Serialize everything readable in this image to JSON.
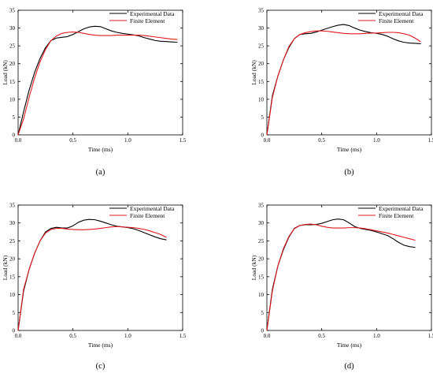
{
  "chart_data": [
    {
      "type": "line",
      "panel_label": "(a)",
      "xlabel": "Time (ms)",
      "ylabel": "Load (kN)",
      "xlim": [
        0,
        1.5
      ],
      "ylim": [
        0,
        35
      ],
      "xticks": [
        "0.0",
        "0.5",
        "1.0",
        "1.5"
      ],
      "yticks": [
        "0",
        "5",
        "10",
        "15",
        "20",
        "25",
        "30",
        "35"
      ],
      "grid": false,
      "legend_position": "top-right",
      "series": [
        {
          "name": "Experimental Data",
          "color": "#000000",
          "x": [
            0,
            0.05,
            0.1,
            0.15,
            0.2,
            0.25,
            0.3,
            0.35,
            0.4,
            0.45,
            0.5,
            0.55,
            0.6,
            0.65,
            0.7,
            0.75,
            0.8,
            0.85,
            0.9,
            0.95,
            1.0,
            1.05,
            1.1,
            1.15,
            1.2,
            1.25,
            1.3,
            1.35,
            1.4,
            1.45
          ],
          "y": [
            0,
            6.5,
            12.5,
            17.5,
            21.5,
            24.5,
            26.5,
            27.2,
            27.4,
            27.6,
            28.2,
            29.0,
            29.8,
            30.3,
            30.5,
            30.4,
            29.8,
            29.2,
            28.8,
            28.5,
            28.3,
            28.1,
            27.8,
            27.3,
            26.9,
            26.5,
            26.3,
            26.2,
            26.1,
            26.0
          ]
        },
        {
          "name": "Finite Element",
          "color": "#e0191f",
          "x": [
            0,
            0.05,
            0.1,
            0.15,
            0.2,
            0.25,
            0.3,
            0.35,
            0.4,
            0.45,
            0.5,
            0.55,
            0.6,
            0.65,
            0.7,
            0.75,
            0.8,
            0.85,
            0.9,
            0.95,
            1.0,
            1.05,
            1.1,
            1.15,
            1.2,
            1.25,
            1.3,
            1.35,
            1.4,
            1.45
          ],
          "y": [
            0,
            4.5,
            10.5,
            16.0,
            20.5,
            24.0,
            26.5,
            27.8,
            28.5,
            28.8,
            28.9,
            28.8,
            28.5,
            28.2,
            28.0,
            27.9,
            27.9,
            27.9,
            28.0,
            28.0,
            28.0,
            28.0,
            28.0,
            27.9,
            27.7,
            27.5,
            27.3,
            27.1,
            26.9,
            26.8
          ]
        }
      ]
    },
    {
      "type": "line",
      "panel_label": "(b)",
      "xlabel": "Time (ms)",
      "ylabel": "Load (kN)",
      "xlim": [
        0,
        1.5
      ],
      "ylim": [
        0,
        35
      ],
      "xticks": [
        "0.0",
        "0.5",
        "1.0",
        "1.5"
      ],
      "yticks": [
        "0",
        "5",
        "10",
        "15",
        "20",
        "25",
        "30",
        "35"
      ],
      "grid": false,
      "legend_position": "top-right",
      "series": [
        {
          "name": "Experimental Data",
          "color": "#000000",
          "x": [
            0,
            0.05,
            0.1,
            0.15,
            0.2,
            0.25,
            0.3,
            0.35,
            0.4,
            0.45,
            0.5,
            0.55,
            0.6,
            0.65,
            0.7,
            0.75,
            0.8,
            0.85,
            0.9,
            0.95,
            1.0,
            1.05,
            1.1,
            1.15,
            1.2,
            1.25,
            1.3,
            1.35,
            1.4
          ],
          "y": [
            0,
            11.0,
            16.5,
            21.0,
            24.5,
            27.0,
            28.2,
            28.4,
            28.5,
            28.9,
            29.4,
            29.9,
            30.4,
            30.8,
            31.0,
            30.7,
            30.0,
            29.4,
            29.0,
            28.7,
            28.5,
            28.2,
            27.7,
            27.0,
            26.4,
            26.0,
            25.8,
            25.7,
            25.6
          ]
        },
        {
          "name": "Finite Element",
          "color": "#e0191f",
          "x": [
            0,
            0.05,
            0.1,
            0.15,
            0.2,
            0.25,
            0.3,
            0.35,
            0.4,
            0.45,
            0.5,
            0.55,
            0.6,
            0.65,
            0.7,
            0.75,
            0.8,
            0.85,
            0.9,
            0.95,
            1.0,
            1.05,
            1.1,
            1.15,
            1.2,
            1.25,
            1.3,
            1.35,
            1.4
          ],
          "y": [
            0,
            10.5,
            16.5,
            21.0,
            24.8,
            27.0,
            28.2,
            28.7,
            29.0,
            29.2,
            29.2,
            29.1,
            28.9,
            28.7,
            28.5,
            28.4,
            28.4,
            28.4,
            28.5,
            28.6,
            28.6,
            28.7,
            28.8,
            28.8,
            28.7,
            28.4,
            28.0,
            27.2,
            26.2
          ]
        }
      ]
    },
    {
      "type": "line",
      "panel_label": "(c)",
      "xlabel": "Time (ms)",
      "ylabel": "Load (kN)",
      "xlim": [
        0,
        1.5
      ],
      "ylim": [
        0,
        35
      ],
      "xticks": [
        "0.0",
        "0.5",
        "1.0",
        "1.5"
      ],
      "yticks": [
        "0",
        "5",
        "10",
        "15",
        "20",
        "25",
        "30",
        "35"
      ],
      "grid": false,
      "legend_position": "top-right",
      "series": [
        {
          "name": "Experimental Data",
          "color": "#000000",
          "x": [
            0,
            0.05,
            0.1,
            0.15,
            0.2,
            0.25,
            0.3,
            0.35,
            0.4,
            0.45,
            0.5,
            0.55,
            0.6,
            0.65,
            0.7,
            0.75,
            0.8,
            0.85,
            0.9,
            0.95,
            1.0,
            1.05,
            1.1,
            1.15,
            1.2,
            1.25,
            1.3,
            1.35
          ],
          "y": [
            0,
            11.0,
            17.0,
            21.5,
            25.0,
            27.5,
            28.5,
            28.8,
            28.6,
            28.6,
            29.2,
            30.2,
            30.8,
            31.0,
            30.9,
            30.5,
            30.0,
            29.5,
            29.1,
            28.9,
            28.7,
            28.4,
            27.9,
            27.3,
            26.7,
            26.1,
            25.6,
            25.3
          ]
        },
        {
          "name": "Finite Element",
          "color": "#e0191f",
          "x": [
            0,
            0.05,
            0.1,
            0.15,
            0.2,
            0.25,
            0.3,
            0.35,
            0.4,
            0.45,
            0.5,
            0.55,
            0.6,
            0.65,
            0.7,
            0.75,
            0.8,
            0.85,
            0.9,
            0.95,
            1.0,
            1.05,
            1.1,
            1.15,
            1.2,
            1.25,
            1.3,
            1.35
          ],
          "y": [
            0,
            11.5,
            17.0,
            21.5,
            25.0,
            27.2,
            28.2,
            28.5,
            28.5,
            28.3,
            28.2,
            28.1,
            28.1,
            28.2,
            28.3,
            28.5,
            28.7,
            28.9,
            29.0,
            28.9,
            28.8,
            28.7,
            28.5,
            28.2,
            27.8,
            27.3,
            26.8,
            26.0
          ]
        }
      ]
    },
    {
      "type": "line",
      "panel_label": "(d)",
      "xlabel": "Time (ms)",
      "ylabel": "Load (kN)",
      "xlim": [
        0,
        1.5
      ],
      "ylim": [
        0,
        35
      ],
      "xticks": [
        "0.0",
        "0.5",
        "1.0",
        "1.5"
      ],
      "yticks": [
        "0",
        "5",
        "10",
        "15",
        "20",
        "25",
        "30",
        "35"
      ],
      "grid": false,
      "legend_position": "top-right",
      "series": [
        {
          "name": "Experimental Data",
          "color": "#000000",
          "x": [
            0,
            0.05,
            0.1,
            0.15,
            0.2,
            0.25,
            0.3,
            0.35,
            0.4,
            0.45,
            0.5,
            0.55,
            0.6,
            0.65,
            0.7,
            0.75,
            0.8,
            0.85,
            0.9,
            0.95,
            1.0,
            1.05,
            1.1,
            1.15,
            1.2,
            1.25,
            1.3,
            1.35
          ],
          "y": [
            0,
            11.5,
            18.0,
            22.5,
            26.0,
            28.5,
            29.3,
            29.5,
            29.5,
            29.6,
            29.9,
            30.4,
            30.9,
            31.1,
            30.9,
            30.0,
            29.0,
            28.5,
            28.2,
            27.9,
            27.5,
            27.0,
            26.5,
            25.6,
            24.6,
            23.8,
            23.4,
            23.2
          ]
        },
        {
          "name": "Finite Element",
          "color": "#e0191f",
          "x": [
            0,
            0.05,
            0.1,
            0.15,
            0.2,
            0.25,
            0.3,
            0.35,
            0.4,
            0.45,
            0.5,
            0.55,
            0.6,
            0.65,
            0.7,
            0.75,
            0.8,
            0.85,
            0.9,
            0.95,
            1.0,
            1.05,
            1.1,
            1.15,
            1.2,
            1.25,
            1.3,
            1.35
          ],
          "y": [
            0,
            11.0,
            18.0,
            22.8,
            26.2,
            28.4,
            29.3,
            29.6,
            29.7,
            29.5,
            29.1,
            28.8,
            28.6,
            28.6,
            28.6,
            28.7,
            28.7,
            28.6,
            28.4,
            28.1,
            27.8,
            27.5,
            27.2,
            26.8,
            26.4,
            26.0,
            25.6,
            25.2
          ]
        }
      ]
    }
  ]
}
